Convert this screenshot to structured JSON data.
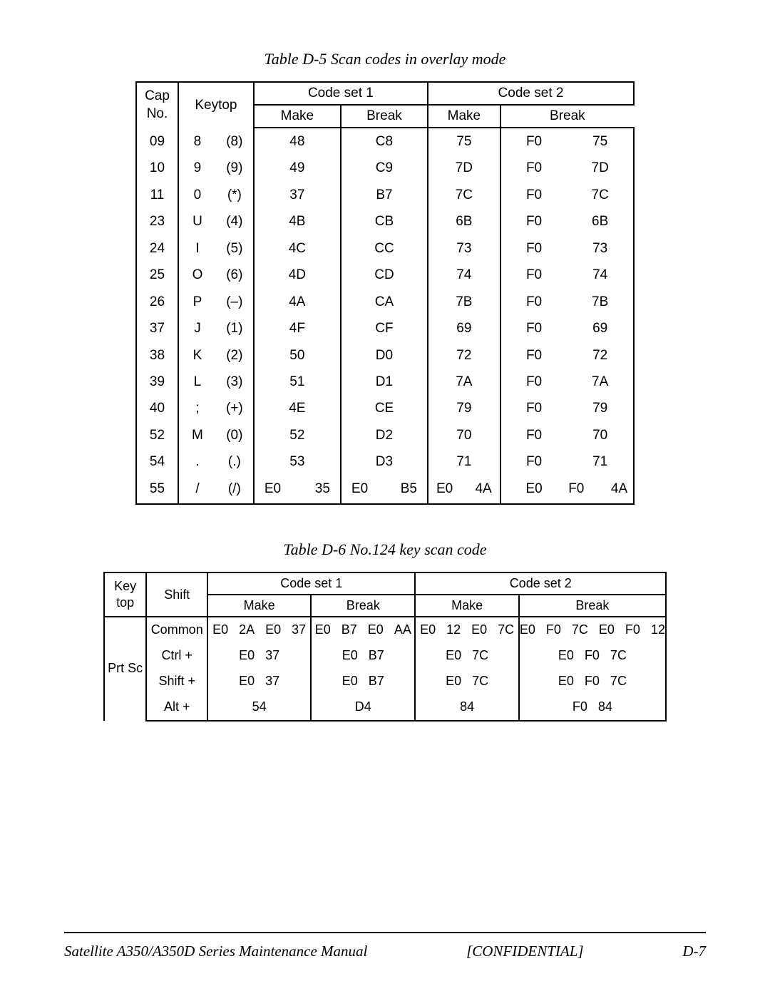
{
  "caption5": "Table D-5  Scan codes in overlay mode",
  "caption6": "Table D-6  No.124 key scan code",
  "t5": {
    "headers": {
      "cap": "Cap No.",
      "keytop": "Keytop",
      "cs1": "Code set 1",
      "cs2": "Code set 2",
      "make": "Make",
      "break": "Break"
    },
    "rows": [
      {
        "cap": "09",
        "k1": "8",
        "k2": "(8)",
        "m1": "48",
        "b1": "C8",
        "m2": "75",
        "b2a": "F0",
        "b2b": "75"
      },
      {
        "cap": "10",
        "k1": "9",
        "k2": "(9)",
        "m1": "49",
        "b1": "C9",
        "m2": "7D",
        "b2a": "F0",
        "b2b": "7D"
      },
      {
        "cap": "11",
        "k1": "0",
        "k2": "(*)",
        "m1": "37",
        "b1": "B7",
        "m2": "7C",
        "b2a": "F0",
        "b2b": "7C"
      },
      {
        "cap": "23",
        "k1": "U",
        "k2": "(4)",
        "m1": "4B",
        "b1": "CB",
        "m2": "6B",
        "b2a": "F0",
        "b2b": "6B"
      },
      {
        "cap": "24",
        "k1": "I",
        "k2": "(5)",
        "m1": "4C",
        "b1": "CC",
        "m2": "73",
        "b2a": "F0",
        "b2b": "73"
      },
      {
        "cap": "25",
        "k1": "O",
        "k2": "(6)",
        "m1": "4D",
        "b1": "CD",
        "m2": "74",
        "b2a": "F0",
        "b2b": "74"
      },
      {
        "cap": "26",
        "k1": "P",
        "k2": "(–)",
        "m1": "4A",
        "b1": "CA",
        "m2": "7B",
        "b2a": "F0",
        "b2b": "7B"
      },
      {
        "cap": "37",
        "k1": "J",
        "k2": "(1)",
        "m1": "4F",
        "b1": "CF",
        "m2": "69",
        "b2a": "F0",
        "b2b": "69"
      },
      {
        "cap": "38",
        "k1": "K",
        "k2": "(2)",
        "m1": "50",
        "b1": "D0",
        "m2": "72",
        "b2a": "F0",
        "b2b": "72"
      },
      {
        "cap": "39",
        "k1": "L",
        "k2": "(3)",
        "m1": "51",
        "b1": "D1",
        "m2": "7A",
        "b2a": "F0",
        "b2b": "7A"
      },
      {
        "cap": "40",
        "k1": ";",
        "k2": "(+)",
        "m1": "4E",
        "b1": "CE",
        "m2": "79",
        "b2a": "F0",
        "b2b": "79"
      },
      {
        "cap": "52",
        "k1": "M",
        "k2": "(0)",
        "m1": "52",
        "b1": "D2",
        "m2": "70",
        "b2a": "F0",
        "b2b": "70"
      },
      {
        "cap": "54",
        "k1": ".",
        "k2": "(.)",
        "m1": "53",
        "b1": "D3",
        "m2": "71",
        "b2a": "F0",
        "b2b": "71"
      }
    ],
    "lastRow": {
      "cap": "55",
      "k1": "/",
      "k2": "(/)",
      "m1a": "E0",
      "m1b": "35",
      "b1a": "E0",
      "b1b": "B5",
      "m2a": "E0",
      "m2b": "4A",
      "b2a": "E0",
      "b2b": "F0",
      "b2c": "4A"
    }
  },
  "t6": {
    "headers": {
      "keytop": "Key top",
      "shift": "Shift",
      "cs1": "Code set 1",
      "cs2": "Code set 2",
      "make": "Make",
      "break": "Break"
    },
    "keytop": "Prt Sc",
    "rows": [
      {
        "shift": "Common",
        "m1": "E0   2A   E0   37",
        "b1": "E0   B7   E0   AA",
        "m2": "E0   12   E0   7C",
        "b2": "E0   F0   7C   E0   F0   12"
      },
      {
        "shift": "Ctrl +",
        "m1": "E0   37",
        "b1": "E0   B7",
        "m2": "E0   7C",
        "b2": "E0   F0   7C"
      },
      {
        "shift": "Shift +",
        "m1": "E0   37",
        "b1": "E0   B7",
        "m2": "E0   7C",
        "b2": "E0   F0   7C"
      },
      {
        "shift": "Alt +",
        "m1": "54",
        "b1": "D4",
        "m2": "84",
        "b2": "F0   84"
      }
    ]
  },
  "footer": {
    "left": "Satellite A350/A350D Series Maintenance Manual",
    "center": "[CONFIDENTIAL]",
    "right": "D-7"
  }
}
